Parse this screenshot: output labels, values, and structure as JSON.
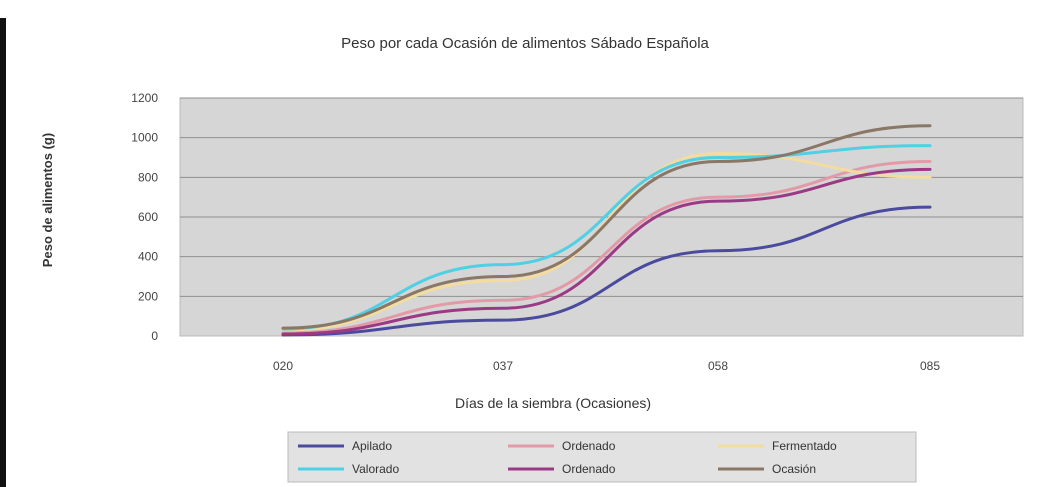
{
  "chart_data": {
    "type": "line",
    "title": "Peso por cada Ocasión de alimentos Sábado Española",
    "xlabel": "Días de la siembra (Ocasiones)",
    "ylabel": "Peso de alimentos (g)",
    "categories": [
      "020",
      "037",
      "058",
      "085"
    ],
    "ylim": [
      0,
      1200
    ],
    "yticks": [
      "0",
      "200",
      "400",
      "600",
      "800",
      "1000",
      "1200"
    ],
    "grid": true,
    "legend_position": "bottom",
    "series": [
      {
        "name": "Apilado",
        "color": "#4a4a9e",
        "values": [
          5,
          80,
          430,
          650
        ]
      },
      {
        "name": "Ordenado",
        "color": "#e39aa8",
        "values": [
          15,
          180,
          700,
          880
        ]
      },
      {
        "name": "Fermentado",
        "color": "#f3dca0",
        "values": [
          30,
          280,
          920,
          800
        ]
      },
      {
        "name": "Valorado",
        "color": "#4fd0e4",
        "values": [
          35,
          360,
          900,
          960
        ]
      },
      {
        "name": "Ordenado",
        "color": "#9a3a86",
        "values": [
          10,
          140,
          680,
          840
        ]
      },
      {
        "name": "Ocasión",
        "color": "#8a7766",
        "values": [
          40,
          300,
          880,
          1060
        ]
      }
    ]
  }
}
